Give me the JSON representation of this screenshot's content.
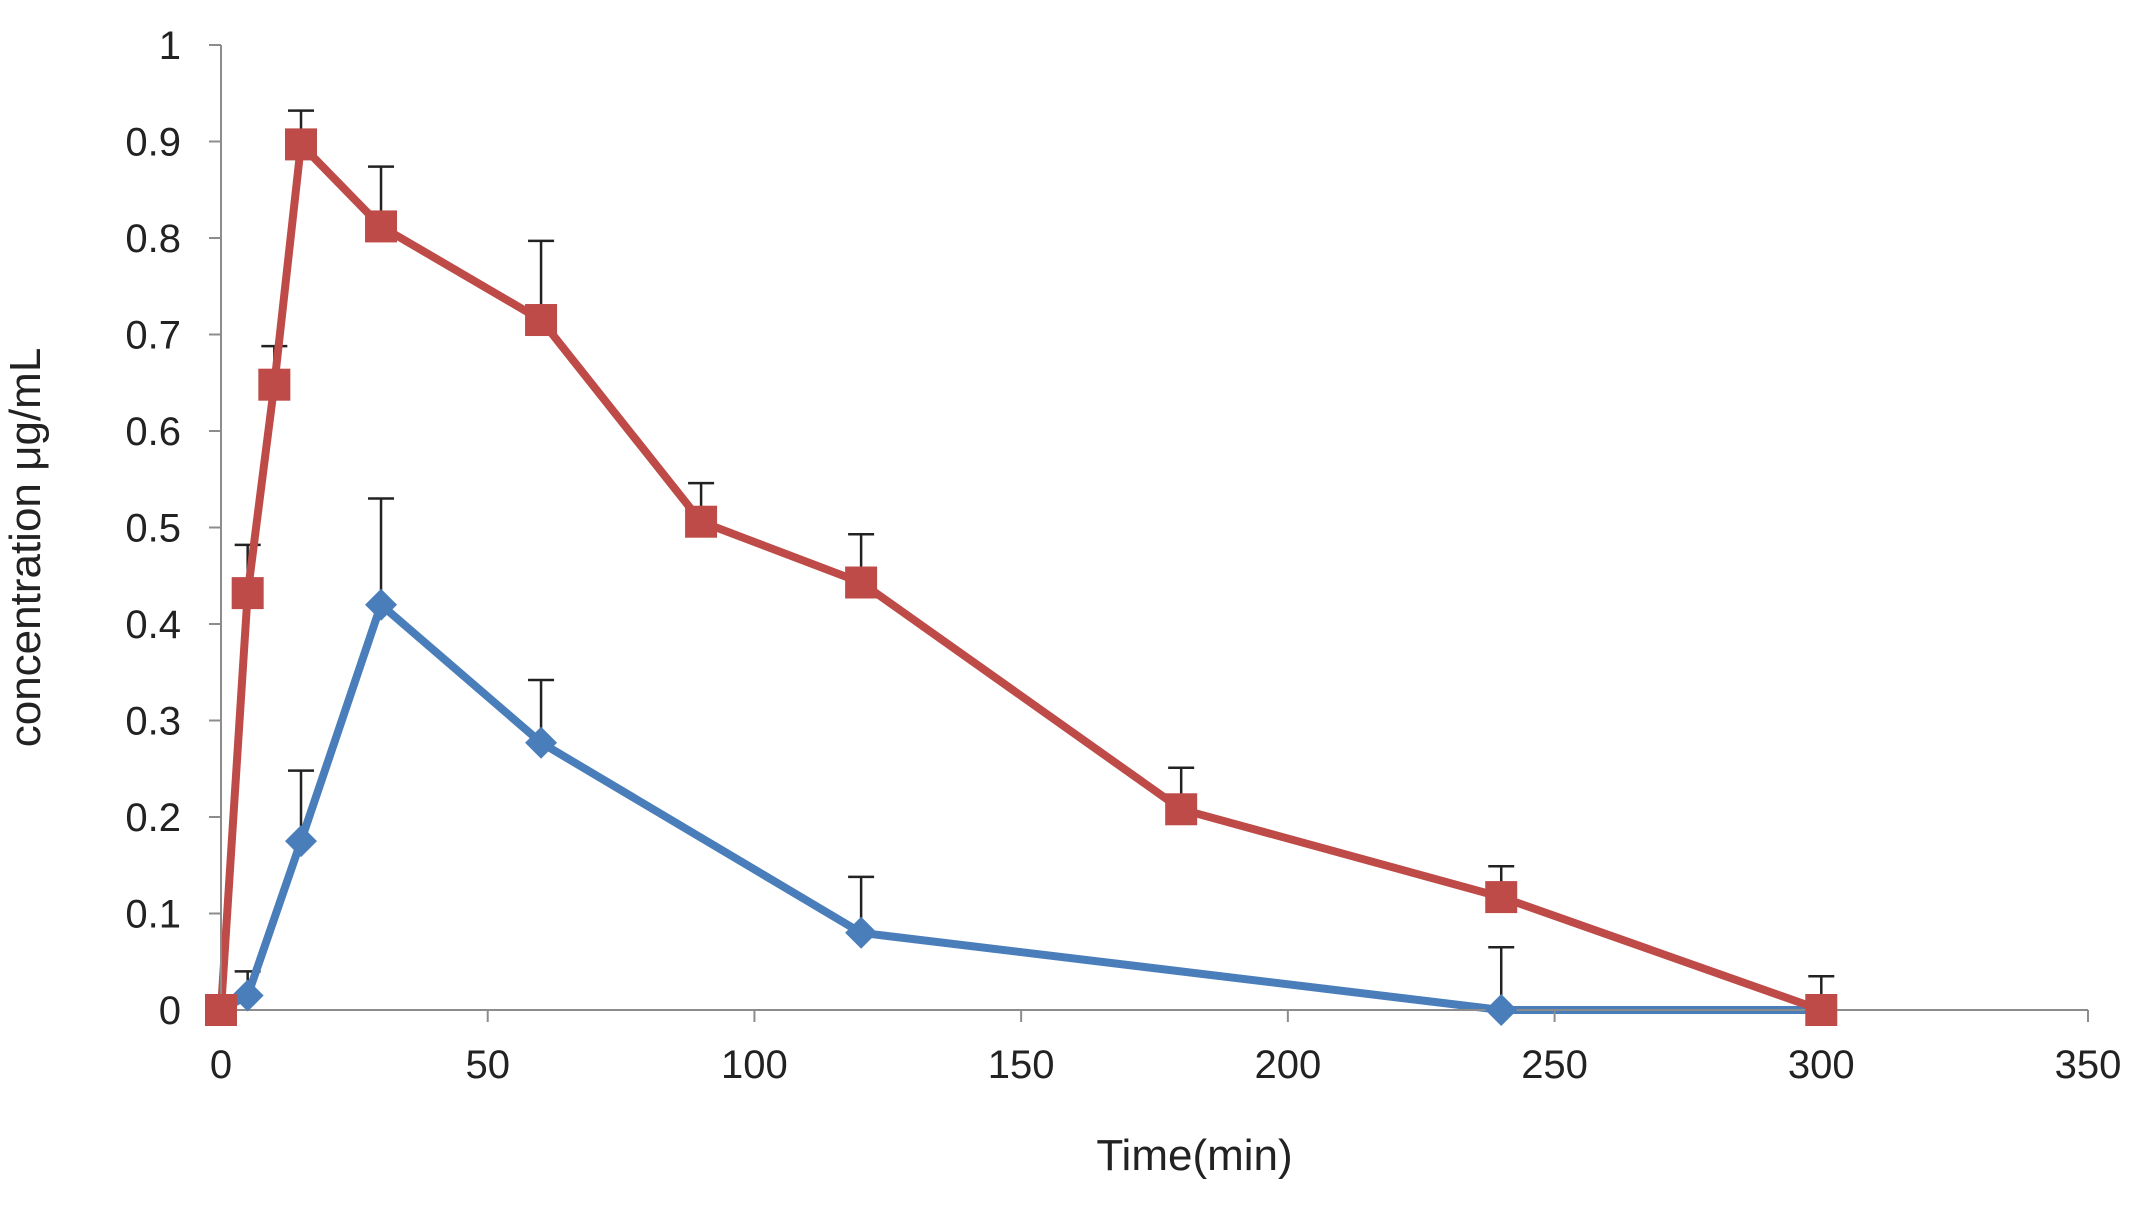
{
  "chart_data": {
    "type": "line",
    "title": "",
    "xlabel": "Time(min)",
    "ylabel": "concentration μg/mL",
    "xlim": [
      0,
      350
    ],
    "ylim": [
      0,
      1
    ],
    "x_ticks": [
      0,
      50,
      100,
      150,
      200,
      250,
      300,
      350
    ],
    "x_tick_labels": [
      "0",
      "50",
      "100",
      "150",
      "200",
      "250",
      "300",
      "350"
    ],
    "y_ticks": [
      0,
      0.1,
      0.2,
      0.3,
      0.4,
      0.5,
      0.6,
      0.7,
      0.8,
      0.9,
      1
    ],
    "y_tick_labels": [
      "0",
      "0.1",
      "0.2",
      "0.3",
      "0.4",
      "0.5",
      "0.6",
      "0.7",
      "0.8",
      "0.9",
      "1"
    ],
    "grid": false,
    "legend": "none",
    "series": [
      {
        "name": "series-blue",
        "color": "#4a7ebb",
        "marker": "diamond",
        "points": [
          {
            "x": 0,
            "y": 0,
            "err": 0
          },
          {
            "x": 5,
            "y": 0.015,
            "err": 0.025
          },
          {
            "x": 15,
            "y": 0.175,
            "err": 0.073
          },
          {
            "x": 30,
            "y": 0.42,
            "err": 0.11
          },
          {
            "x": 60,
            "y": 0.277,
            "err": 0.065
          },
          {
            "x": 120,
            "y": 0.08,
            "err": 0.058
          },
          {
            "x": 240,
            "y": 0,
            "err": 0.065
          },
          {
            "x": 300,
            "y": 0,
            "err": 0
          }
        ]
      },
      {
        "name": "series-red",
        "color": "#be4b48",
        "marker": "square",
        "points": [
          {
            "x": 0,
            "y": 0,
            "err": 0
          },
          {
            "x": 5,
            "y": 0.432,
            "err": 0.05
          },
          {
            "x": 10,
            "y": 0.648,
            "err": 0.04
          },
          {
            "x": 15,
            "y": 0.897,
            "err": 0.035
          },
          {
            "x": 30,
            "y": 0.812,
            "err": 0.062
          },
          {
            "x": 60,
            "y": 0.715,
            "err": 0.082
          },
          {
            "x": 90,
            "y": 0.506,
            "err": 0.04
          },
          {
            "x": 120,
            "y": 0.443,
            "err": 0.05
          },
          {
            "x": 180,
            "y": 0.208,
            "err": 0.043
          },
          {
            "x": 240,
            "y": 0.117,
            "err": 0.032
          },
          {
            "x": 300,
            "y": 0,
            "err": 0.035
          }
        ]
      }
    ]
  }
}
